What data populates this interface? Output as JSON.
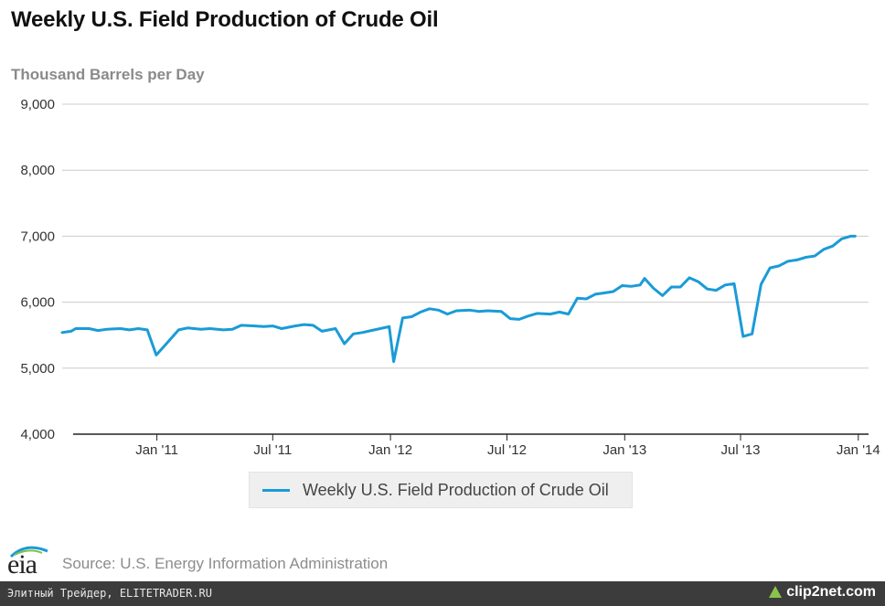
{
  "chart_data": {
    "type": "line",
    "title": "Weekly U.S. Field Production of Crude Oil",
    "ylabel": "Thousand Barrels per Day",
    "xlabel": "",
    "ylim": [
      4000,
      9000
    ],
    "yticks": [
      9000,
      8000,
      7000,
      6000,
      5000,
      4000
    ],
    "ytick_labels": [
      "9,000",
      "8,000",
      "7,000",
      "6,000",
      "5,000",
      "4,000"
    ],
    "xlim": [
      "2010-08-06",
      "2014-01-17"
    ],
    "xticks": [
      "2011-01-01",
      "2011-07-01",
      "2012-01-01",
      "2012-07-01",
      "2013-01-01",
      "2013-07-01",
      "2014-01-01"
    ],
    "xtick_labels": [
      "Jan '11",
      "Jul '11",
      "Jan '12",
      "Jul '12",
      "Jan '13",
      "Jul '13",
      "Jan '14"
    ],
    "grid": true,
    "legend_position": "bottom-center",
    "series": [
      {
        "name": "Weekly U.S. Field Production of Crude Oil",
        "color": "#1a9bd7",
        "points": [
          [
            "2010-08-06",
            5540
          ],
          [
            "2010-08-20",
            5560
          ],
          [
            "2010-08-27",
            5600
          ],
          [
            "2010-09-17",
            5600
          ],
          [
            "2010-10-01",
            5570
          ],
          [
            "2010-10-15",
            5590
          ],
          [
            "2010-11-05",
            5600
          ],
          [
            "2010-11-19",
            5580
          ],
          [
            "2010-12-03",
            5600
          ],
          [
            "2010-12-17",
            5580
          ],
          [
            "2010-12-31",
            5200
          ],
          [
            "2011-01-14",
            5350
          ],
          [
            "2011-02-04",
            5580
          ],
          [
            "2011-02-18",
            5610
          ],
          [
            "2011-03-11",
            5590
          ],
          [
            "2011-03-25",
            5600
          ],
          [
            "2011-04-15",
            5580
          ],
          [
            "2011-04-29",
            5590
          ],
          [
            "2011-05-13",
            5650
          ],
          [
            "2011-06-03",
            5640
          ],
          [
            "2011-06-17",
            5630
          ],
          [
            "2011-07-01",
            5640
          ],
          [
            "2011-07-15",
            5600
          ],
          [
            "2011-08-05",
            5640
          ],
          [
            "2011-08-19",
            5660
          ],
          [
            "2011-09-02",
            5650
          ],
          [
            "2011-09-16",
            5560
          ],
          [
            "2011-10-07",
            5600
          ],
          [
            "2011-10-21",
            5370
          ],
          [
            "2011-11-04",
            5520
          ],
          [
            "2011-11-18",
            5540
          ],
          [
            "2011-12-02",
            5570
          ],
          [
            "2011-12-16",
            5600
          ],
          [
            "2011-12-30",
            5630
          ],
          [
            "2012-01-06",
            5100
          ],
          [
            "2012-01-20",
            5760
          ],
          [
            "2012-02-03",
            5780
          ],
          [
            "2012-02-17",
            5850
          ],
          [
            "2012-03-02",
            5900
          ],
          [
            "2012-03-16",
            5880
          ],
          [
            "2012-03-30",
            5820
          ],
          [
            "2012-04-13",
            5870
          ],
          [
            "2012-05-04",
            5880
          ],
          [
            "2012-05-18",
            5860
          ],
          [
            "2012-06-01",
            5870
          ],
          [
            "2012-06-22",
            5860
          ],
          [
            "2012-07-06",
            5750
          ],
          [
            "2012-07-20",
            5740
          ],
          [
            "2012-08-03",
            5790
          ],
          [
            "2012-08-17",
            5830
          ],
          [
            "2012-09-07",
            5820
          ],
          [
            "2012-09-21",
            5850
          ],
          [
            "2012-10-05",
            5820
          ],
          [
            "2012-10-19",
            6060
          ],
          [
            "2012-11-02",
            6050
          ],
          [
            "2012-11-16",
            6120
          ],
          [
            "2012-11-30",
            6140
          ],
          [
            "2012-12-14",
            6160
          ],
          [
            "2012-12-28",
            6250
          ],
          [
            "2013-01-11",
            6240
          ],
          [
            "2013-01-25",
            6260
          ],
          [
            "2013-02-01",
            6360
          ],
          [
            "2013-02-15",
            6210
          ],
          [
            "2013-03-01",
            6100
          ],
          [
            "2013-03-15",
            6230
          ],
          [
            "2013-03-29",
            6230
          ],
          [
            "2013-04-12",
            6370
          ],
          [
            "2013-04-26",
            6310
          ],
          [
            "2013-05-10",
            6200
          ],
          [
            "2013-05-24",
            6180
          ],
          [
            "2013-06-07",
            6260
          ],
          [
            "2013-06-21",
            6280
          ],
          [
            "2013-07-05",
            5480
          ],
          [
            "2013-07-19",
            5520
          ],
          [
            "2013-08-02",
            6270
          ],
          [
            "2013-08-16",
            6520
          ],
          [
            "2013-08-30",
            6550
          ],
          [
            "2013-09-13",
            6620
          ],
          [
            "2013-09-27",
            6640
          ],
          [
            "2013-10-11",
            6680
          ],
          [
            "2013-10-25",
            6700
          ],
          [
            "2013-11-08",
            6800
          ],
          [
            "2013-11-22",
            6850
          ],
          [
            "2013-12-06",
            6960
          ],
          [
            "2013-12-20",
            7000
          ],
          [
            "2013-12-27",
            7000
          ]
        ]
      }
    ]
  },
  "legend": {
    "label": "Weekly U.S. Field Production of Crude Oil"
  },
  "source": "Source: U.S. Energy Information Administration",
  "logo_text": "eia",
  "footer": {
    "left_text": "Элитный Трейдер, ELITETRADER.RU",
    "right_brand": "clip2net.com"
  },
  "colors": {
    "line": "#1a9bd7",
    "axis": "#222222",
    "grid": "#cccccc",
    "footer_bg": "#3c3c3c"
  }
}
